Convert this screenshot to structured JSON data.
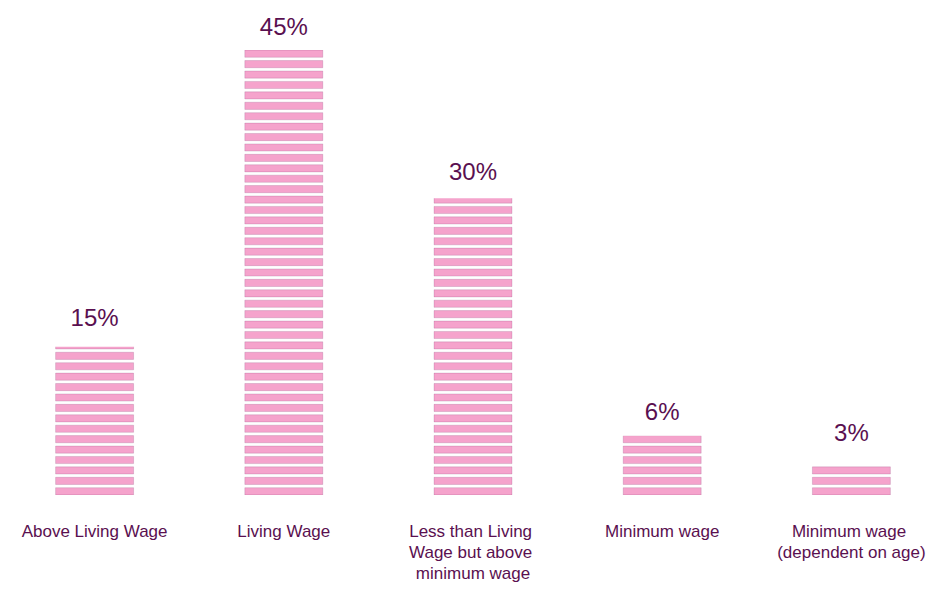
{
  "chart_data": {
    "type": "bar",
    "categories": [
      "Above Living Wage",
      "Living Wage",
      "Less than Living Wage but above minimum wage",
      "Minimum wage",
      "Minimum wage (dependent on age)"
    ],
    "values": [
      15,
      45,
      30,
      6,
      3
    ],
    "value_labels": [
      "15%",
      "45%",
      "30%",
      "6%",
      "3%"
    ],
    "color": "#f5a3cc",
    "ylim": [
      0,
      45
    ],
    "grid": false,
    "data_labels": true,
    "tick_labels": false
  }
}
